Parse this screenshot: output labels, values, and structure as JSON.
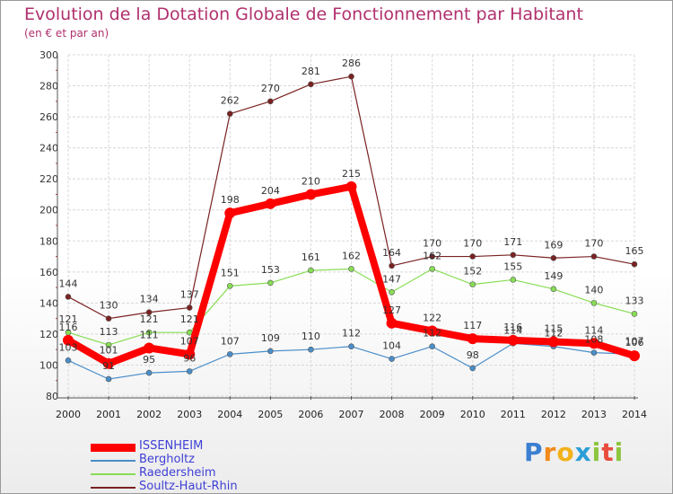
{
  "chart_data": {
    "type": "line",
    "title": "Evolution de la Dotation Globale de Fonctionnement par Habitant",
    "subtitle": "(en € et par an)",
    "xlabel": "",
    "ylabel": "",
    "x": [
      "2000",
      "2001",
      "2002",
      "2003",
      "2004",
      "2005",
      "2006",
      "2007",
      "2008",
      "2009",
      "2010",
      "2011",
      "2012",
      "2013",
      "2014"
    ],
    "ylim": [
      80,
      300
    ],
    "yticks": [
      "80",
      "100",
      "120",
      "140",
      "160",
      "180",
      "200",
      "220",
      "240",
      "260",
      "280",
      "300"
    ],
    "grid": true,
    "legend_position": "bottom-left",
    "series": [
      {
        "name": "Soultz-Haut-Rhin",
        "color": "#7a2121",
        "values": [
          144,
          130,
          134,
          137,
          262,
          270,
          281,
          286,
          164,
          170,
          170,
          171,
          169,
          170,
          165
        ]
      },
      {
        "name": "Raedersheim",
        "color": "#88dd55",
        "values": [
          121,
          113,
          121,
          121,
          151,
          153,
          161,
          162,
          147,
          162,
          152,
          155,
          149,
          140,
          133
        ]
      },
      {
        "name": "Bergholtz",
        "color": "#4a8ec9",
        "values": [
          103,
          91,
          95,
          96,
          107,
          109,
          110,
          112,
          104,
          112,
          98,
          114,
          112,
          108,
          107
        ]
      },
      {
        "name": "ISSENHEIM",
        "color": "#ff0000",
        "values": [
          116,
          101,
          111,
          107,
          198,
          204,
          210,
          215,
          127,
          122,
          117,
          116,
          115,
          114,
          106
        ]
      }
    ],
    "labels": {
      "Soultz-Haut-Rhin": [
        "144",
        "130",
        "134",
        "137",
        "262",
        "270",
        "281",
        "286",
        "164",
        "170",
        "170",
        "171",
        "169",
        "170",
        "165"
      ],
      "Raedersheim": [
        "121",
        "113",
        "121",
        "121",
        "151",
        "153",
        "161",
        "162",
        "147",
        "162",
        "152",
        "155",
        "149",
        "140",
        "133"
      ],
      "Bergholtz": [
        "103",
        "91",
        "95",
        "96",
        "107",
        "109",
        "110",
        "112",
        "104",
        "112",
        "98",
        "114",
        "112",
        "108",
        "107"
      ],
      "ISSENHEIM": [
        "116",
        "101",
        "111",
        "107",
        "198",
        "204",
        "210",
        "215",
        "127",
        "122",
        "117",
        "116",
        "115",
        "114",
        "106"
      ]
    },
    "legend_order": [
      "ISSENHEIM",
      "Bergholtz",
      "Raedersheim",
      "Soultz-Haut-Rhin"
    ]
  },
  "branding": {
    "letters": [
      "P",
      "r",
      "o",
      "x",
      "i",
      "t",
      "i"
    ],
    "colors": [
      "#3b7fd1",
      "#f28a1a",
      "#f2b21a",
      "#2b9ed8",
      "#8cc63f",
      "#e84b3c",
      "#8cc63f"
    ]
  }
}
